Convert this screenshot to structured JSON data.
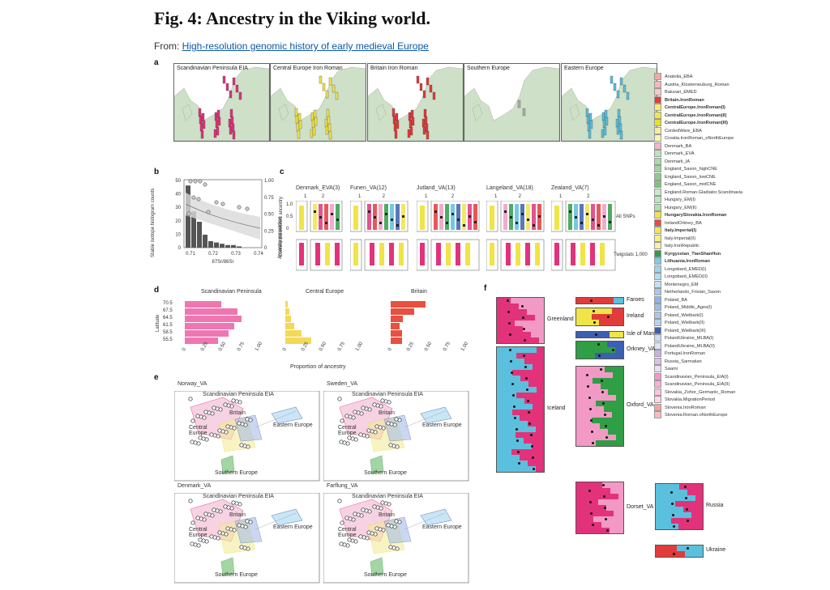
{
  "header": {
    "title": "Fig. 4: Ancestry in the Viking world.",
    "from_prefix": "From: ",
    "from_link": "High-resolution genomic history of early medieval Europe"
  },
  "panel_labels": {
    "a": "a",
    "b": "b",
    "c": "c",
    "d": "d",
    "e": "e",
    "f": "f"
  },
  "panel_a": {
    "maps": [
      "Scandinavian Peninsula EIA",
      "Central Europe Iron Roman",
      "Britain Iron Roman",
      "Southern Europe",
      "Eastern Europe"
    ]
  },
  "legend": {
    "items": [
      {
        "label": "Anatolia_EBA",
        "color": "#f2a7a7",
        "bold": false
      },
      {
        "label": "Austria_Klosterneuburg_Roman",
        "color": "#f4b9b9",
        "bold": false
      },
      {
        "label": "Baiuvari_EMED",
        "color": "#f6caca",
        "bold": false
      },
      {
        "label": "Britain.IronRoman",
        "color": "#e23b3b",
        "bold": true
      },
      {
        "label": "CentralEurope.IronRoman(I)",
        "color": "#f3ec6a",
        "bold": true
      },
      {
        "label": "CentralEurope.IronRoman(II)",
        "color": "#efe64a",
        "bold": true
      },
      {
        "label": "CentralEurope.IronRoman(III)",
        "color": "#e9df2c",
        "bold": true
      },
      {
        "label": "CordedWare_EBA",
        "color": "#f5ef9a",
        "bold": false
      },
      {
        "label": "Croatia.IronRoman_oNorthEurope",
        "color": "#f8f3b3",
        "bold": false
      },
      {
        "label": "Denmark_BA",
        "color": "#f7b3c9",
        "bold": false
      },
      {
        "label": "Denmark_EVA",
        "color": "#b9e6b9",
        "bold": false
      },
      {
        "label": "Denmark_IA",
        "color": "#a8dba8",
        "bold": false
      },
      {
        "label": "England_Saxon_highCNE",
        "color": "#9fd49f",
        "bold": false
      },
      {
        "label": "England_Saxon_lowCNE",
        "color": "#8ccc8c",
        "bold": false
      },
      {
        "label": "England_Saxon_midCNE",
        "color": "#7ec47e",
        "bold": false
      },
      {
        "label": "England.Roman.Gladiator.Scandinavia",
        "color": "#c9ebc9",
        "bold": false
      },
      {
        "label": "Hungary_EM(I)",
        "color": "#bfe5bf",
        "bold": false
      },
      {
        "label": "Hungary_EM(II)",
        "color": "#b0dfb0",
        "bold": false
      },
      {
        "label": "HungarySlovakia.IronRoman",
        "color": "#f0e447",
        "bold": true
      },
      {
        "label": "IrelandOrkney_BA",
        "color": "#e84a4a",
        "bold": false
      },
      {
        "label": "Italy.Imperial(I)",
        "color": "#f1e65a",
        "bold": true
      },
      {
        "label": "Italy.Imperial(II)",
        "color": "#f5ee8a",
        "bold": false
      },
      {
        "label": "Italy.IronRepublic",
        "color": "#f8f2a8",
        "bold": false
      },
      {
        "label": "Kyrgyzstan_TianShanHun",
        "color": "#2f9e44",
        "bold": true
      },
      {
        "label": "Lithuania.IronRoman",
        "color": "#7fc8e8",
        "bold": true
      },
      {
        "label": "Longobard_EMED(I)",
        "color": "#9ed3ee",
        "bold": false
      },
      {
        "label": "Longobard_EMED(II)",
        "color": "#b2dcf1",
        "bold": false
      },
      {
        "label": "Montenegro_EM",
        "color": "#c3e3f4",
        "bold": false
      },
      {
        "label": "Netherlands_Frisian_Saxon",
        "color": "#a9c8ef",
        "bold": false
      },
      {
        "label": "Poland_BA",
        "color": "#8fb3e8",
        "bold": false
      },
      {
        "label": "Poland_Middle_Ages(I)",
        "color": "#9ebde9",
        "bold": false
      },
      {
        "label": "Poland_Wielbark(I)",
        "color": "#adc7ec",
        "bold": false
      },
      {
        "label": "Poland_Wielbark(II)",
        "color": "#bcd1ef",
        "bold": false
      },
      {
        "label": "Poland_Wielbark(III)",
        "color": "#3c5fb0",
        "bold": false
      },
      {
        "label": "PolandUkraine_MLBA(I)",
        "color": "#cbdcf2",
        "bold": false
      },
      {
        "label": "PolandUkraine_MLBA(II)",
        "color": "#dae6f5",
        "bold": false
      },
      {
        "label": "Portugal.IronRoman",
        "color": "#c7b2e0",
        "bold": false
      },
      {
        "label": "Russia_Sarmatian",
        "color": "#d5c3e8",
        "bold": false
      },
      {
        "label": "Saami",
        "color": "#e8dff3",
        "bold": false
      },
      {
        "label": "Scandinavian_Peninsula_EIA(I)",
        "color": "#f29ac5",
        "bold": false
      },
      {
        "label": "Scandinavian_Peninsula_EIA(II)",
        "color": "#f5b1d2",
        "bold": false
      },
      {
        "label": "Slovakia_Zohor_Germanic_Roman",
        "color": "#f8c6de",
        "bold": false
      },
      {
        "label": "Slovakia.MigrationPeriod",
        "color": "#fad6e8",
        "bold": false
      },
      {
        "label": "Slovenia.IronRoman",
        "color": "#f6a2a2",
        "bold": false
      },
      {
        "label": "Slovenia.Roman.oNorthEurope",
        "color": "#f9bfbf",
        "bold": false
      }
    ]
  },
  "panel_b": {
    "ylabel_left": "Stable isotope histogram counts",
    "ylabel_right": "Continental-related ancestry",
    "xlabel": "87Sr/86Sr",
    "yticks_left": [
      "50",
      "40",
      "30",
      "20",
      "10",
      "0"
    ],
    "yticks_right": [
      "1.00",
      "0.75",
      "0.50",
      "0.25",
      "0"
    ],
    "xticks": [
      "0.71",
      "0.72",
      "0.73",
      "0.74"
    ]
  },
  "panel_c": {
    "groups": [
      "Denmark_EVA(3)",
      "Funen_VA(12)",
      "Jutland_VA(13)",
      "Langeland_VA(18)",
      "Zealand_VA(7)"
    ],
    "ylabel": "Ancestry proportion",
    "row_labels": [
      "All SNPs",
      "Twigstats 1,000"
    ],
    "yticks": [
      "1.0",
      "0.5",
      "0"
    ],
    "col_nums": [
      "1",
      "2"
    ]
  },
  "panel_d": {
    "ylabel": "Latitude",
    "xlabel": "Proportion of ancestry",
    "latitudes": [
      "70.5",
      "67.5",
      "64.5",
      "61.5",
      "58.5",
      "55.5"
    ],
    "xticks": [
      "0",
      "0.25",
      "0.50",
      "0.75",
      "1.00"
    ],
    "charts": [
      {
        "title": "Scandinavian Peninsula",
        "color": "#ee77b1",
        "values": [
          0.5,
          0.72,
          0.78,
          0.68,
          0.6,
          0.45
        ]
      },
      {
        "title": "Central Europe",
        "color": "#f3d85a",
        "values": [
          0.03,
          0.05,
          0.08,
          0.12,
          0.22,
          0.35
        ]
      },
      {
        "title": "Britain",
        "color": "#e8503f",
        "values": [
          0.48,
          0.32,
          0.17,
          0.12,
          0.15,
          0.15
        ]
      }
    ]
  },
  "panel_e": {
    "plots": [
      {
        "title": "Norway_VA"
      },
      {
        "title": "Sweden_VA"
      },
      {
        "title": "Denmark_VA"
      },
      {
        "title": "Farflung_VA"
      }
    ],
    "region_labels": {
      "scand": "Scandinavian Peninsula EIA",
      "britain": "Britain",
      "central": "Central Europe",
      "eastern": "Eastern Europe",
      "southern": "Southern Europe"
    }
  },
  "panel_f": {
    "groups": [
      "Greenland",
      "Iceland",
      "Faroes",
      "Ireland",
      "Isle of Man",
      "Orkney_VA",
      "Oxford_VA",
      "Dorset_VA",
      "Russia",
      "Ukraine"
    ]
  }
}
